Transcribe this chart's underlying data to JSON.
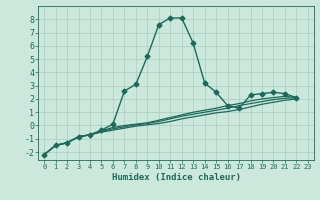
{
  "title": "",
  "xlabel": "Humidex (Indice chaleur)",
  "bg_color": "#cce8dd",
  "grid_color": "#aaccbb",
  "line_color": "#1a6b5a",
  "xlim": [
    -0.5,
    23.5
  ],
  "ylim": [
    -2.6,
    9.0
  ],
  "xticks": [
    0,
    1,
    2,
    3,
    4,
    5,
    6,
    7,
    8,
    9,
    10,
    11,
    12,
    13,
    14,
    15,
    16,
    17,
    18,
    19,
    20,
    21,
    22,
    23
  ],
  "yticks": [
    -2,
    -1,
    0,
    1,
    2,
    3,
    4,
    5,
    6,
    7,
    8
  ],
  "curves": [
    {
      "x": [
        0,
        1,
        2,
        3,
        4,
        5,
        6,
        7,
        8,
        9,
        10,
        11,
        12,
        13,
        14,
        15,
        16,
        17,
        18,
        19,
        20,
        21,
        22
      ],
      "y": [
        -2.2,
        -1.5,
        -1.3,
        -0.85,
        -0.7,
        -0.35,
        0.1,
        2.6,
        3.1,
        5.2,
        7.6,
        8.1,
        8.1,
        6.2,
        3.2,
        2.5,
        1.5,
        1.3,
        2.3,
        2.4,
        2.5,
        2.4,
        2.1
      ],
      "marker": "D",
      "markersize": 2.5,
      "linewidth": 1.0
    },
    {
      "x": [
        0,
        1,
        2,
        3,
        4,
        5,
        6,
        7,
        8,
        9,
        10,
        11,
        12,
        13,
        14,
        15,
        16,
        17,
        18,
        19,
        20,
        21,
        22
      ],
      "y": [
        -2.2,
        -1.5,
        -1.3,
        -0.85,
        -0.7,
        -0.5,
        -0.35,
        -0.2,
        -0.05,
        0.05,
        0.15,
        0.3,
        0.5,
        0.65,
        0.8,
        0.95,
        1.05,
        1.2,
        1.4,
        1.6,
        1.75,
        1.9,
        2.0
      ],
      "marker": null,
      "markersize": 0,
      "linewidth": 0.9
    },
    {
      "x": [
        0,
        1,
        2,
        3,
        4,
        5,
        6,
        7,
        8,
        9,
        10,
        11,
        12,
        13,
        14,
        15,
        16,
        17,
        18,
        19,
        20,
        21,
        22
      ],
      "y": [
        -2.2,
        -1.5,
        -1.3,
        -0.85,
        -0.7,
        -0.45,
        -0.25,
        -0.1,
        0.05,
        0.15,
        0.3,
        0.5,
        0.7,
        0.85,
        1.0,
        1.15,
        1.3,
        1.5,
        1.65,
        1.8,
        1.95,
        2.05,
        2.1
      ],
      "marker": null,
      "markersize": 0,
      "linewidth": 0.9
    },
    {
      "x": [
        0,
        1,
        2,
        3,
        4,
        5,
        6,
        7,
        8,
        9,
        10,
        11,
        12,
        13,
        14,
        15,
        16,
        17,
        18,
        19,
        20,
        21,
        22
      ],
      "y": [
        -2.2,
        -1.5,
        -1.3,
        -0.85,
        -0.7,
        -0.4,
        -0.15,
        0.0,
        0.1,
        0.2,
        0.4,
        0.6,
        0.8,
        1.0,
        1.15,
        1.3,
        1.5,
        1.65,
        1.85,
        2.0,
        2.1,
        2.2,
        2.1
      ],
      "marker": null,
      "markersize": 0,
      "linewidth": 0.9
    }
  ]
}
